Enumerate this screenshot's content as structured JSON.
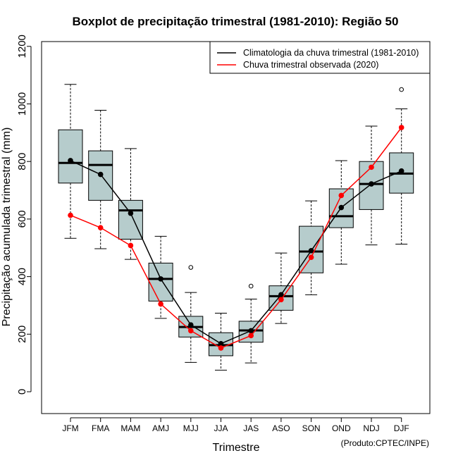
{
  "chart_data": {
    "type": "boxplot",
    "title": "Boxplot de precipitação trimestral (1981-2010): Região 50",
    "xlabel": "Trimestre",
    "ylabel": "Precipitação acumulada trimestral (mm)",
    "ylim": [
      -70,
      1230
    ],
    "yticks": [
      0,
      200,
      400,
      600,
      800,
      1000,
      1200
    ],
    "categories": [
      "JFM",
      "FMA",
      "MAM",
      "AMJ",
      "MJJ",
      "JJA",
      "JAS",
      "ASO",
      "SON",
      "OND",
      "NDJ",
      "DJF"
    ],
    "boxes": [
      {
        "min": 533,
        "q1": 725,
        "median": 795,
        "q3": 910,
        "max": 1068,
        "outliers": []
      },
      {
        "min": 497,
        "q1": 665,
        "median": 788,
        "q3": 837,
        "max": 978,
        "outliers": []
      },
      {
        "min": 460,
        "q1": 530,
        "median": 630,
        "q3": 665,
        "max": 845,
        "outliers": []
      },
      {
        "min": 255,
        "q1": 315,
        "median": 392,
        "q3": 447,
        "max": 540,
        "outliers": []
      },
      {
        "min": 102,
        "q1": 190,
        "median": 225,
        "q3": 262,
        "max": 345,
        "outliers": [
          432
        ]
      },
      {
        "min": 75,
        "q1": 125,
        "median": 162,
        "q3": 205,
        "max": 273,
        "outliers": []
      },
      {
        "min": 100,
        "q1": 172,
        "median": 213,
        "q3": 245,
        "max": 322,
        "outliers": [
          367
        ]
      },
      {
        "min": 237,
        "q1": 283,
        "median": 332,
        "q3": 368,
        "max": 482,
        "outliers": []
      },
      {
        "min": 337,
        "q1": 413,
        "median": 487,
        "q3": 575,
        "max": 663,
        "outliers": []
      },
      {
        "min": 443,
        "q1": 570,
        "median": 610,
        "q3": 705,
        "max": 803,
        "outliers": []
      },
      {
        "min": 510,
        "q1": 633,
        "median": 722,
        "q3": 800,
        "max": 923,
        "outliers": []
      },
      {
        "min": 513,
        "q1": 690,
        "median": 758,
        "q3": 830,
        "max": 983,
        "outliers": [
          1050
        ]
      }
    ],
    "series": [
      {
        "name": "Climatologia da chuva trimestral (1981-2010)",
        "color": "#000000",
        "values": [
          803,
          755,
          620,
          392,
          232,
          167,
          212,
          337,
          490,
          640,
          722,
          767
        ]
      },
      {
        "name": "Chuva trimestral observada (2020)",
        "color": "#ff0000",
        "values": [
          613,
          570,
          508,
          305,
          212,
          152,
          195,
          320,
          467,
          682,
          780,
          918
        ]
      }
    ],
    "box_color": "#b6cccc",
    "legend_position": "top-right",
    "credit": "(Produto:CPTEC/INPE)"
  }
}
